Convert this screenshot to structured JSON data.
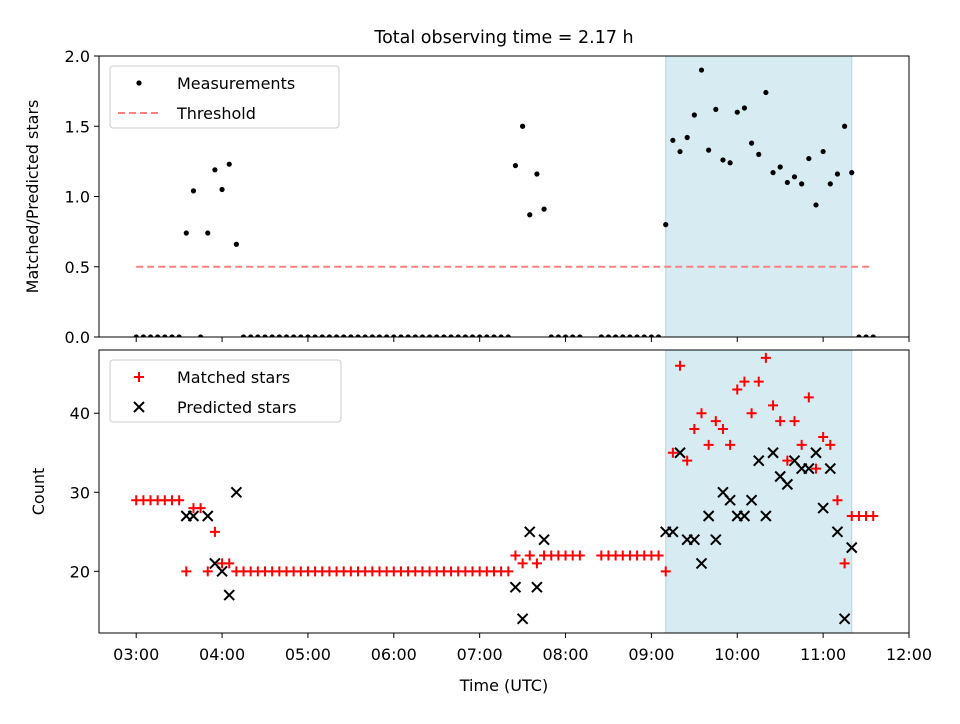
{
  "title": "Total observing time = 2.17 h",
  "colors": {
    "highlight": "#add8e6",
    "threshold": "#ff7f7f",
    "matched": "#ff0000",
    "predicted": "#000000",
    "measurement": "#000000"
  },
  "chart_data": [
    {
      "type": "scatter",
      "panel": "top",
      "ylabel": "Matched/Predicted stars",
      "xlabel": "",
      "ylim": [
        0,
        2.0
      ],
      "yticks": [
        "0.0",
        "0.5",
        "1.0",
        "1.5",
        "2.0"
      ],
      "legend": {
        "placement": "top-left",
        "entries": [
          "Measurements",
          "Threshold"
        ]
      },
      "highlight_span": [
        "09:10",
        "11:20"
      ],
      "threshold": {
        "name": "Threshold",
        "value": 0.5,
        "x_range": [
          "03:00",
          "11:35"
        ]
      },
      "series": [
        {
          "name": "Measurements",
          "x": [
            "03:00",
            "03:05",
            "03:10",
            "03:15",
            "03:20",
            "03:25",
            "03:30",
            "03:35",
            "03:40",
            "03:45",
            "03:50",
            "03:55",
            "04:00",
            "04:05",
            "04:10",
            "04:15",
            "04:20",
            "04:25",
            "04:30",
            "04:35",
            "04:40",
            "04:45",
            "04:50",
            "04:55",
            "05:00",
            "05:05",
            "05:10",
            "05:15",
            "05:20",
            "05:25",
            "05:30",
            "05:35",
            "05:40",
            "05:45",
            "05:50",
            "05:55",
            "06:00",
            "06:05",
            "06:10",
            "06:15",
            "06:20",
            "06:25",
            "06:30",
            "06:35",
            "06:40",
            "06:45",
            "06:50",
            "06:55",
            "07:00",
            "07:05",
            "07:10",
            "07:15",
            "07:20",
            "07:25",
            "07:30",
            "07:35",
            "07:40",
            "07:45",
            "07:50",
            "07:55",
            "08:00",
            "08:05",
            "08:10",
            "08:25",
            "08:30",
            "08:35",
            "08:40",
            "08:45",
            "08:50",
            "08:55",
            "09:00",
            "09:05",
            "09:10",
            "09:15",
            "09:20",
            "09:25",
            "09:30",
            "09:35",
            "09:40",
            "09:45",
            "09:50",
            "09:55",
            "10:00",
            "10:05",
            "10:10",
            "10:15",
            "10:20",
            "10:25",
            "10:30",
            "10:35",
            "10:40",
            "10:45",
            "10:50",
            "10:55",
            "11:00",
            "11:05",
            "11:10",
            "11:15",
            "11:20",
            "11:25",
            "11:30",
            "11:35"
          ],
          "y": [
            0,
            0,
            0,
            0,
            0,
            0,
            0,
            0.74,
            1.04,
            0,
            0.74,
            1.19,
            1.05,
            1.23,
            0.66,
            0,
            0,
            0,
            0,
            0,
            0,
            0,
            0,
            0,
            0,
            0,
            0,
            0,
            0,
            0,
            0,
            0,
            0,
            0,
            0,
            0,
            0,
            0,
            0,
            0,
            0,
            0,
            0,
            0,
            0,
            0,
            0,
            0,
            0,
            0,
            0,
            0,
            0,
            1.22,
            1.5,
            0.87,
            1.16,
            0.91,
            0,
            0,
            0,
            0,
            0,
            0,
            0,
            0,
            0,
            0,
            0,
            0,
            0,
            0,
            0.8,
            1.4,
            1.32,
            1.42,
            1.58,
            1.9,
            1.33,
            1.62,
            1.26,
            1.24,
            1.6,
            1.63,
            1.38,
            1.3,
            1.74,
            1.17,
            1.21,
            1.1,
            1.14,
            1.09,
            1.27,
            0.94,
            1.32,
            1.09,
            1.16,
            1.5,
            1.17,
            0,
            0,
            0
          ]
        }
      ]
    },
    {
      "type": "scatter",
      "panel": "bottom",
      "xlabel": "Time (UTC)",
      "ylabel": "Count",
      "ylim": [
        12.2,
        48
      ],
      "yticks": [
        "20",
        "30",
        "40"
      ],
      "xticks": [
        "03:00",
        "04:00",
        "05:00",
        "06:00",
        "07:00",
        "08:00",
        "09:00",
        "10:00",
        "11:00",
        "12:00"
      ],
      "xlim": [
        "02:34",
        "12:00"
      ],
      "legend": {
        "placement": "top-left",
        "entries": [
          "Matched stars",
          "Predicted stars"
        ]
      },
      "highlight_span": [
        "09:10",
        "11:20"
      ],
      "series": [
        {
          "name": "Matched stars",
          "marker": "plus",
          "x": [
            "03:00",
            "03:05",
            "03:10",
            "03:15",
            "03:20",
            "03:25",
            "03:30",
            "03:35",
            "03:40",
            "03:45",
            "03:50",
            "03:55",
            "04:00",
            "04:05",
            "04:10",
            "04:15",
            "04:20",
            "04:25",
            "04:30",
            "04:35",
            "04:40",
            "04:45",
            "04:50",
            "04:55",
            "05:00",
            "05:05",
            "05:10",
            "05:15",
            "05:20",
            "05:25",
            "05:30",
            "05:35",
            "05:40",
            "05:45",
            "05:50",
            "05:55",
            "06:00",
            "06:05",
            "06:10",
            "06:15",
            "06:20",
            "06:25",
            "06:30",
            "06:35",
            "06:40",
            "06:45",
            "06:50",
            "06:55",
            "07:00",
            "07:05",
            "07:10",
            "07:15",
            "07:20",
            "07:25",
            "07:30",
            "07:35",
            "07:40",
            "07:45",
            "07:50",
            "07:55",
            "08:00",
            "08:05",
            "08:10",
            "08:25",
            "08:30",
            "08:35",
            "08:40",
            "08:45",
            "08:50",
            "08:55",
            "09:00",
            "09:05",
            "09:10",
            "09:15",
            "09:20",
            "09:25",
            "09:30",
            "09:35",
            "09:40",
            "09:45",
            "09:50",
            "09:55",
            "10:00",
            "10:05",
            "10:10",
            "10:15",
            "10:20",
            "10:25",
            "10:30",
            "10:35",
            "10:40",
            "10:45",
            "10:50",
            "10:55",
            "11:00",
            "11:05",
            "11:10",
            "11:15",
            "11:20",
            "11:25",
            "11:30",
            "11:35"
          ],
          "y": [
            29,
            29,
            29,
            29,
            29,
            29,
            29,
            20,
            28,
            28,
            20,
            25,
            21,
            21,
            20,
            20,
            20,
            20,
            20,
            20,
            20,
            20,
            20,
            20,
            20,
            20,
            20,
            20,
            20,
            20,
            20,
            20,
            20,
            20,
            20,
            20,
            20,
            20,
            20,
            20,
            20,
            20,
            20,
            20,
            20,
            20,
            20,
            20,
            20,
            20,
            20,
            20,
            20,
            22,
            21,
            22,
            21,
            22,
            22,
            22,
            22,
            22,
            22,
            22,
            22,
            22,
            22,
            22,
            22,
            22,
            22,
            22,
            20,
            35,
            46,
            34,
            38,
            40,
            36,
            39,
            38,
            36,
            43,
            44,
            40,
            44,
            47,
            41,
            39,
            34,
            39,
            36,
            42,
            33,
            37,
            36,
            29,
            21,
            27,
            27,
            27,
            27
          ]
        },
        {
          "name": "Predicted stars",
          "marker": "x",
          "x": [
            "03:35",
            "03:40",
            "03:50",
            "03:55",
            "04:00",
            "04:05",
            "04:10",
            "07:25",
            "07:30",
            "07:35",
            "07:40",
            "07:45",
            "09:10",
            "09:15",
            "09:20",
            "09:25",
            "09:30",
            "09:35",
            "09:40",
            "09:45",
            "09:50",
            "09:55",
            "10:00",
            "10:05",
            "10:10",
            "10:15",
            "10:20",
            "10:25",
            "10:30",
            "10:35",
            "10:40",
            "10:45",
            "10:50",
            "10:55",
            "11:00",
            "11:05",
            "11:10",
            "11:15",
            "11:20"
          ],
          "y": [
            27,
            27,
            27,
            21,
            20,
            17,
            30,
            18,
            14,
            25,
            18,
            24,
            25,
            25,
            35,
            24,
            24,
            21,
            27,
            24,
            30,
            29,
            27,
            27,
            29,
            34,
            27,
            35,
            32,
            31,
            34,
            33,
            33,
            35,
            28,
            33,
            25,
            14,
            23
          ]
        }
      ]
    }
  ]
}
